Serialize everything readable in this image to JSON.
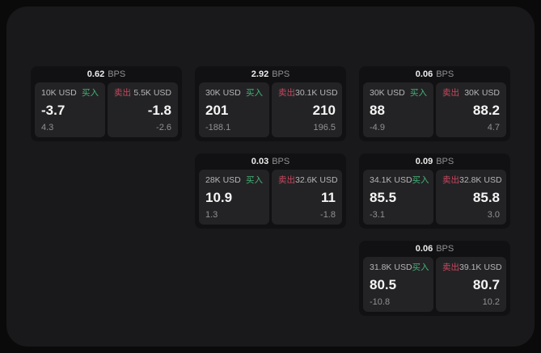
{
  "labels": {
    "bps_unit": "BPS",
    "buy": "买入",
    "sell": "卖出"
  },
  "colors": {
    "page_bg": "#0a0a0a",
    "container_bg": "#19191b",
    "card_bg": "#111113",
    "panel_bg": "#232325",
    "buy_green": "#46b277",
    "sell_red": "#c9485f"
  },
  "cards": [
    {
      "bps": "0.62",
      "buy": {
        "amount": "10K USD",
        "price": "-3.7",
        "sub": "4.3"
      },
      "sell": {
        "amount": "5.5K USD",
        "price": "-1.8",
        "sub": "-2.6"
      }
    },
    {
      "bps": "2.92",
      "buy": {
        "amount": "30K USD",
        "price": "201",
        "sub": "-188.1"
      },
      "sell": {
        "amount": "30.1K USD",
        "price": "210",
        "sub": "196.5"
      }
    },
    {
      "bps": "0.06",
      "buy": {
        "amount": "30K USD",
        "price": "88",
        "sub": "-4.9"
      },
      "sell": {
        "amount": "30K USD",
        "price": "88.2",
        "sub": "4.7"
      }
    },
    {
      "bps": "0.03",
      "buy": {
        "amount": "28K USD",
        "price": "10.9",
        "sub": "1.3"
      },
      "sell": {
        "amount": "32.6K USD",
        "price": "11",
        "sub": "-1.8"
      }
    },
    {
      "bps": "0.09",
      "buy": {
        "amount": "34.1K USD",
        "price": "85.5",
        "sub": "-3.1"
      },
      "sell": {
        "amount": "32.8K USD",
        "price": "85.8",
        "sub": "3.0"
      }
    },
    {
      "bps": "0.06",
      "buy": {
        "amount": "31.8K USD",
        "price": "80.5",
        "sub": "-10.8"
      },
      "sell": {
        "amount": "39.1K USD",
        "price": "80.7",
        "sub": "10.2"
      }
    }
  ]
}
